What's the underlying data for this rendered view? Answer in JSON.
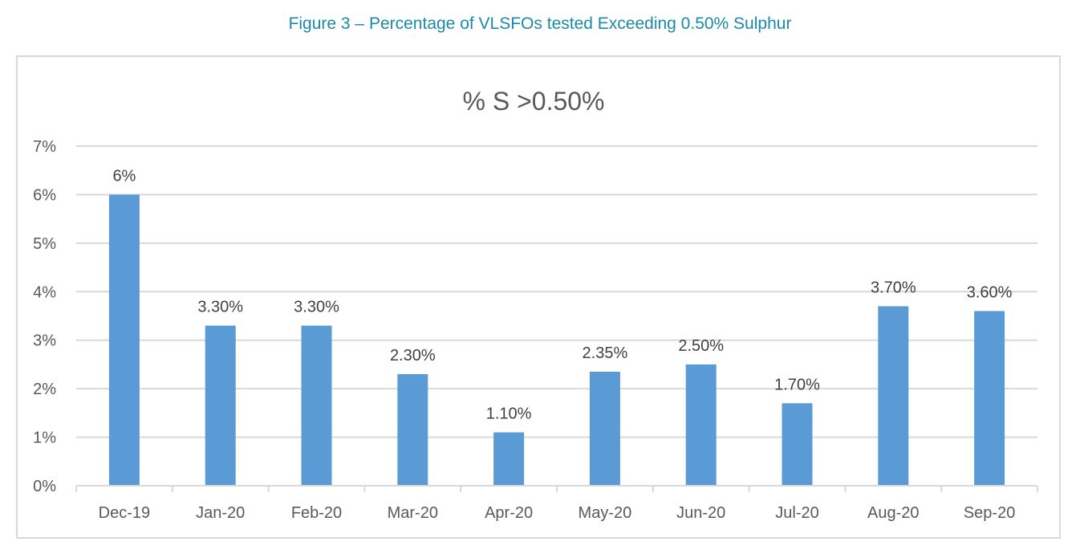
{
  "figure_caption": "Figure 3 – Percentage of VLSFOs tested Exceeding 0.50% Sulphur",
  "colors": {
    "bar": "#5b9bd5",
    "grid": "#d9d9d9",
    "caption": "#1b8aa8"
  },
  "chart_data": {
    "type": "bar",
    "title": "% S >0.50%",
    "xlabel": "",
    "ylabel": "",
    "categories": [
      "Dec-19",
      "Jan-20",
      "Feb-20",
      "Mar-20",
      "Apr-20",
      "May-20",
      "Jun-20",
      "Jul-20",
      "Aug-20",
      "Sep-20"
    ],
    "values": [
      6,
      3.3,
      3.3,
      2.3,
      1.1,
      2.35,
      2.5,
      1.7,
      3.7,
      3.6
    ],
    "data_labels": [
      "6%",
      "3.30%",
      "3.30%",
      "2.30%",
      "1.10%",
      "2.35%",
      "2.50%",
      "1.70%",
      "3.70%",
      "3.60%"
    ],
    "ylim": [
      0,
      7
    ],
    "yticks": [
      0,
      1,
      2,
      3,
      4,
      5,
      6,
      7
    ],
    "ytick_labels": [
      "0%",
      "1%",
      "2%",
      "3%",
      "4%",
      "5%",
      "6%",
      "7%"
    ],
    "grid": true,
    "legend": "none"
  }
}
